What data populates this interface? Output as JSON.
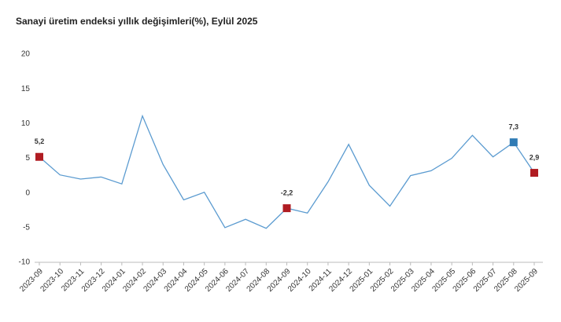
{
  "chart_data": {
    "type": "line",
    "title": "Sanayi üretim endeksi yıllık değişimleri(%), Eylül 2025",
    "categories": [
      "2023-09",
      "2023-10",
      "2023-11",
      "2023-12",
      "2024-01",
      "2024-02",
      "2024-03",
      "2024-04",
      "2024-05",
      "2024-06",
      "2024-07",
      "2024-08",
      "2024-09",
      "2024-10",
      "2024-11",
      "2024-12",
      "2025-01",
      "2025-02",
      "2025-03",
      "2025-04",
      "2025-05",
      "2025-06",
      "2025-07",
      "2025-08",
      "2025-09"
    ],
    "values": [
      5.2,
      2.6,
      2.0,
      2.3,
      1.3,
      11.1,
      4.1,
      -1.0,
      0.1,
      -5.0,
      -3.8,
      -5.1,
      -2.2,
      -2.9,
      1.6,
      7.0,
      1.1,
      -1.9,
      2.5,
      3.2,
      5.0,
      8.3,
      5.2,
      7.3,
      2.9
    ],
    "value_labels": [
      "5,2",
      null,
      null,
      null,
      null,
      null,
      null,
      null,
      null,
      null,
      null,
      null,
      "-2,2",
      null,
      null,
      null,
      null,
      null,
      null,
      null,
      null,
      null,
      null,
      "7,3",
      "2,9"
    ],
    "marker_colors": [
      "#b01c22",
      null,
      null,
      null,
      null,
      null,
      null,
      null,
      null,
      null,
      null,
      null,
      "#b01c22",
      null,
      null,
      null,
      null,
      null,
      null,
      null,
      null,
      null,
      null,
      "#2f7bb5",
      "#b01c22"
    ],
    "color": "#5b9bd0",
    "ylim": [
      -10,
      20
    ],
    "yticks": [
      -10,
      -5,
      0,
      5,
      10,
      15,
      20
    ]
  }
}
